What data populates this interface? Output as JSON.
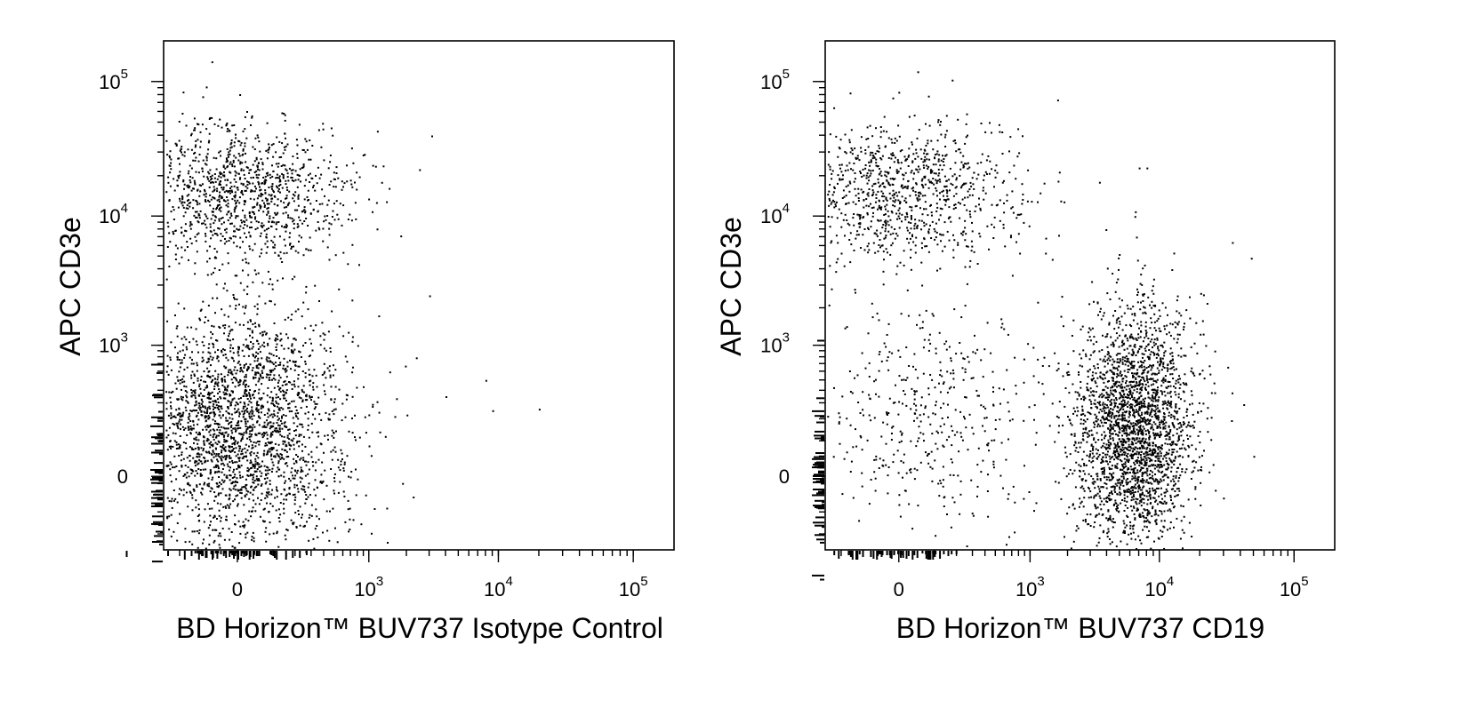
{
  "chart_data": [
    {
      "type": "scatter",
      "title": "",
      "xlabel": "BD Horizon™ BUV737 Isotype Control",
      "ylabel": "APC  CD3e",
      "x_scale": "biexponential",
      "y_scale": "biexponential",
      "xlim": [
        -300,
        200000
      ],
      "ylim": [
        -300,
        200000
      ],
      "x_tick_labels": [
        {
          "value": 0,
          "base": "0",
          "exp": ""
        },
        {
          "value": 1000,
          "base": "10",
          "exp": "3"
        },
        {
          "value": 10000,
          "base": "10",
          "exp": "4"
        },
        {
          "value": 100000,
          "base": "10",
          "exp": "5"
        }
      ],
      "y_tick_labels": [
        {
          "value": 0,
          "base": "0",
          "exp": ""
        },
        {
          "value": 1000,
          "base": "10",
          "exp": "3"
        },
        {
          "value": 10000,
          "base": "10",
          "exp": "4"
        },
        {
          "value": 100000,
          "base": "10",
          "exp": "5"
        }
      ],
      "populations": [
        {
          "x_center": 0,
          "y_center": 15000,
          "count": 1200
        },
        {
          "x_center": 0,
          "y_center": 150,
          "count": 2600
        }
      ],
      "series": [
        {
          "x": [
            3000,
            4000,
            8000,
            9000,
            20000,
            1200,
            500,
            400,
            300
          ],
          "y": [
            2500,
            350,
            500,
            250,
            260,
            240,
            80,
            400,
            350
          ]
        }
      ]
    },
    {
      "type": "scatter",
      "title": "",
      "xlabel": "BD Horizon™ BUV737  CD19",
      "ylabel": "APC  CD3e",
      "x_scale": "biexponential",
      "y_scale": "biexponential",
      "xlim": [
        -300,
        200000
      ],
      "ylim": [
        -300,
        200000
      ],
      "x_tick_labels": [
        {
          "value": 0,
          "base": "0",
          "exp": ""
        },
        {
          "value": 1000,
          "base": "10",
          "exp": "3"
        },
        {
          "value": 10000,
          "base": "10",
          "exp": "4"
        },
        {
          "value": 100000,
          "base": "10",
          "exp": "5"
        }
      ],
      "y_tick_labels": [
        {
          "value": 0,
          "base": "0",
          "exp": ""
        },
        {
          "value": 1000,
          "base": "10",
          "exp": "3"
        },
        {
          "value": 10000,
          "base": "10",
          "exp": "4"
        },
        {
          "value": 100000,
          "base": "10",
          "exp": "5"
        }
      ],
      "populations": [
        {
          "x_center": 0,
          "y_center": 15000,
          "count": 1000
        },
        {
          "x_center": 80,
          "y_center": 200,
          "count": 450
        },
        {
          "x_center": 6500,
          "y_center": 150,
          "count": 2600
        }
      ],
      "series": [
        {
          "x": [
            3500,
            7000,
            8000,
            6500,
            1200,
            600,
            400,
            2000,
            50000,
            1500
          ],
          "y": [
            18000,
            23000,
            23000,
            10000,
            15000,
            6000,
            15000,
            600,
            50,
            300
          ]
        }
      ]
    }
  ]
}
